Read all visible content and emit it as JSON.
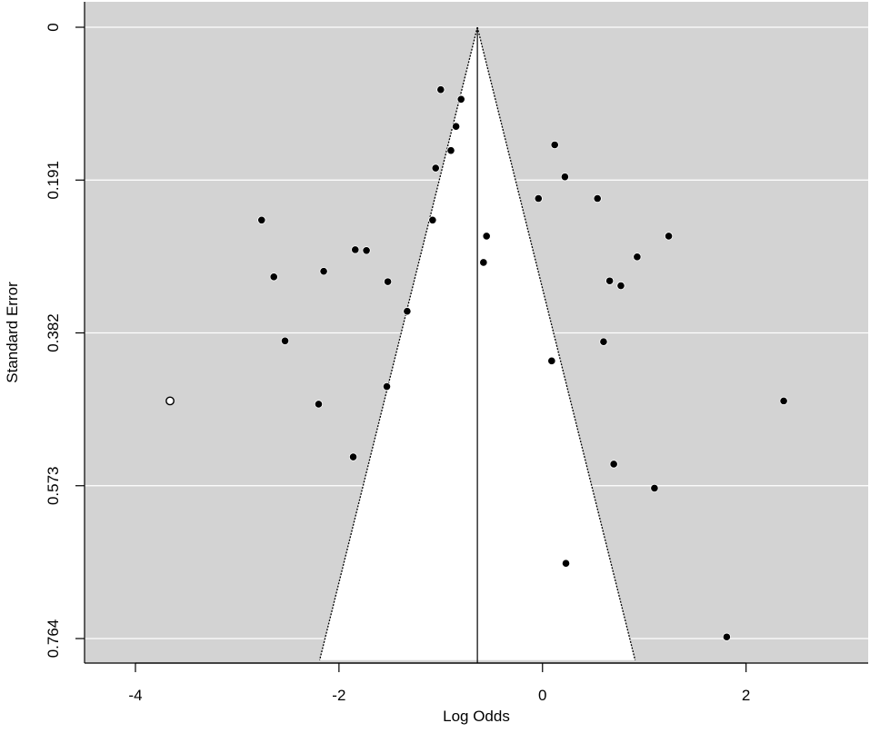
{
  "chart_data": {
    "type": "scatter",
    "subtype": "funnel",
    "title": "",
    "xlabel": "Log Odds",
    "ylabel": "Standard Error",
    "xlim": [
      -4.5,
      3.2
    ],
    "ylim": [
      0.764,
      0
    ],
    "y_reversed": true,
    "xticks": [
      -4,
      -2,
      0,
      2
    ],
    "yticks": [
      0,
      0.191,
      0.382,
      0.573,
      0.764
    ],
    "xtick_labels": [
      "-4",
      "-2",
      "0",
      "2"
    ],
    "ytick_labels": [
      "0",
      "0.191",
      "0.382",
      "0.573",
      "0.764"
    ],
    "grid": "horizontal",
    "colors": {
      "panel": "#d3d3d3",
      "funnel": "#ffffff",
      "gridline": "#ffffff",
      "point": "#000000"
    },
    "center_estimate": -0.64,
    "funnel_bottom_se": 0.791,
    "funnel_bottom_x": [
      -2.19,
      0.91
    ],
    "series": [
      {
        "marker": "filled",
        "x": [
          -1.0,
          -0.8,
          -0.85,
          -0.9,
          -1.05,
          -1.08,
          -0.55,
          -0.58,
          0.12,
          0.22,
          -0.04,
          0.54,
          1.24,
          0.93,
          0.66,
          0.77,
          0.6,
          0.09,
          -2.76,
          -2.64,
          -1.84,
          -1.73,
          -2.15,
          -1.52,
          -1.33,
          -2.53,
          -1.53,
          -2.2,
          -1.86,
          0.7,
          1.1,
          0.23,
          2.37,
          1.81
        ],
        "y": [
          0.078,
          0.09,
          0.124,
          0.154,
          0.176,
          0.241,
          0.261,
          0.294,
          0.147,
          0.187,
          0.214,
          0.214,
          0.261,
          0.287,
          0.317,
          0.323,
          0.393,
          0.417,
          0.241,
          0.312,
          0.278,
          0.279,
          0.305,
          0.318,
          0.355,
          0.392,
          0.449,
          0.471,
          0.537,
          0.546,
          0.576,
          0.67,
          0.467,
          0.762
        ]
      },
      {
        "marker": "open",
        "x": [
          -3.66
        ],
        "y": [
          0.467
        ]
      }
    ]
  }
}
